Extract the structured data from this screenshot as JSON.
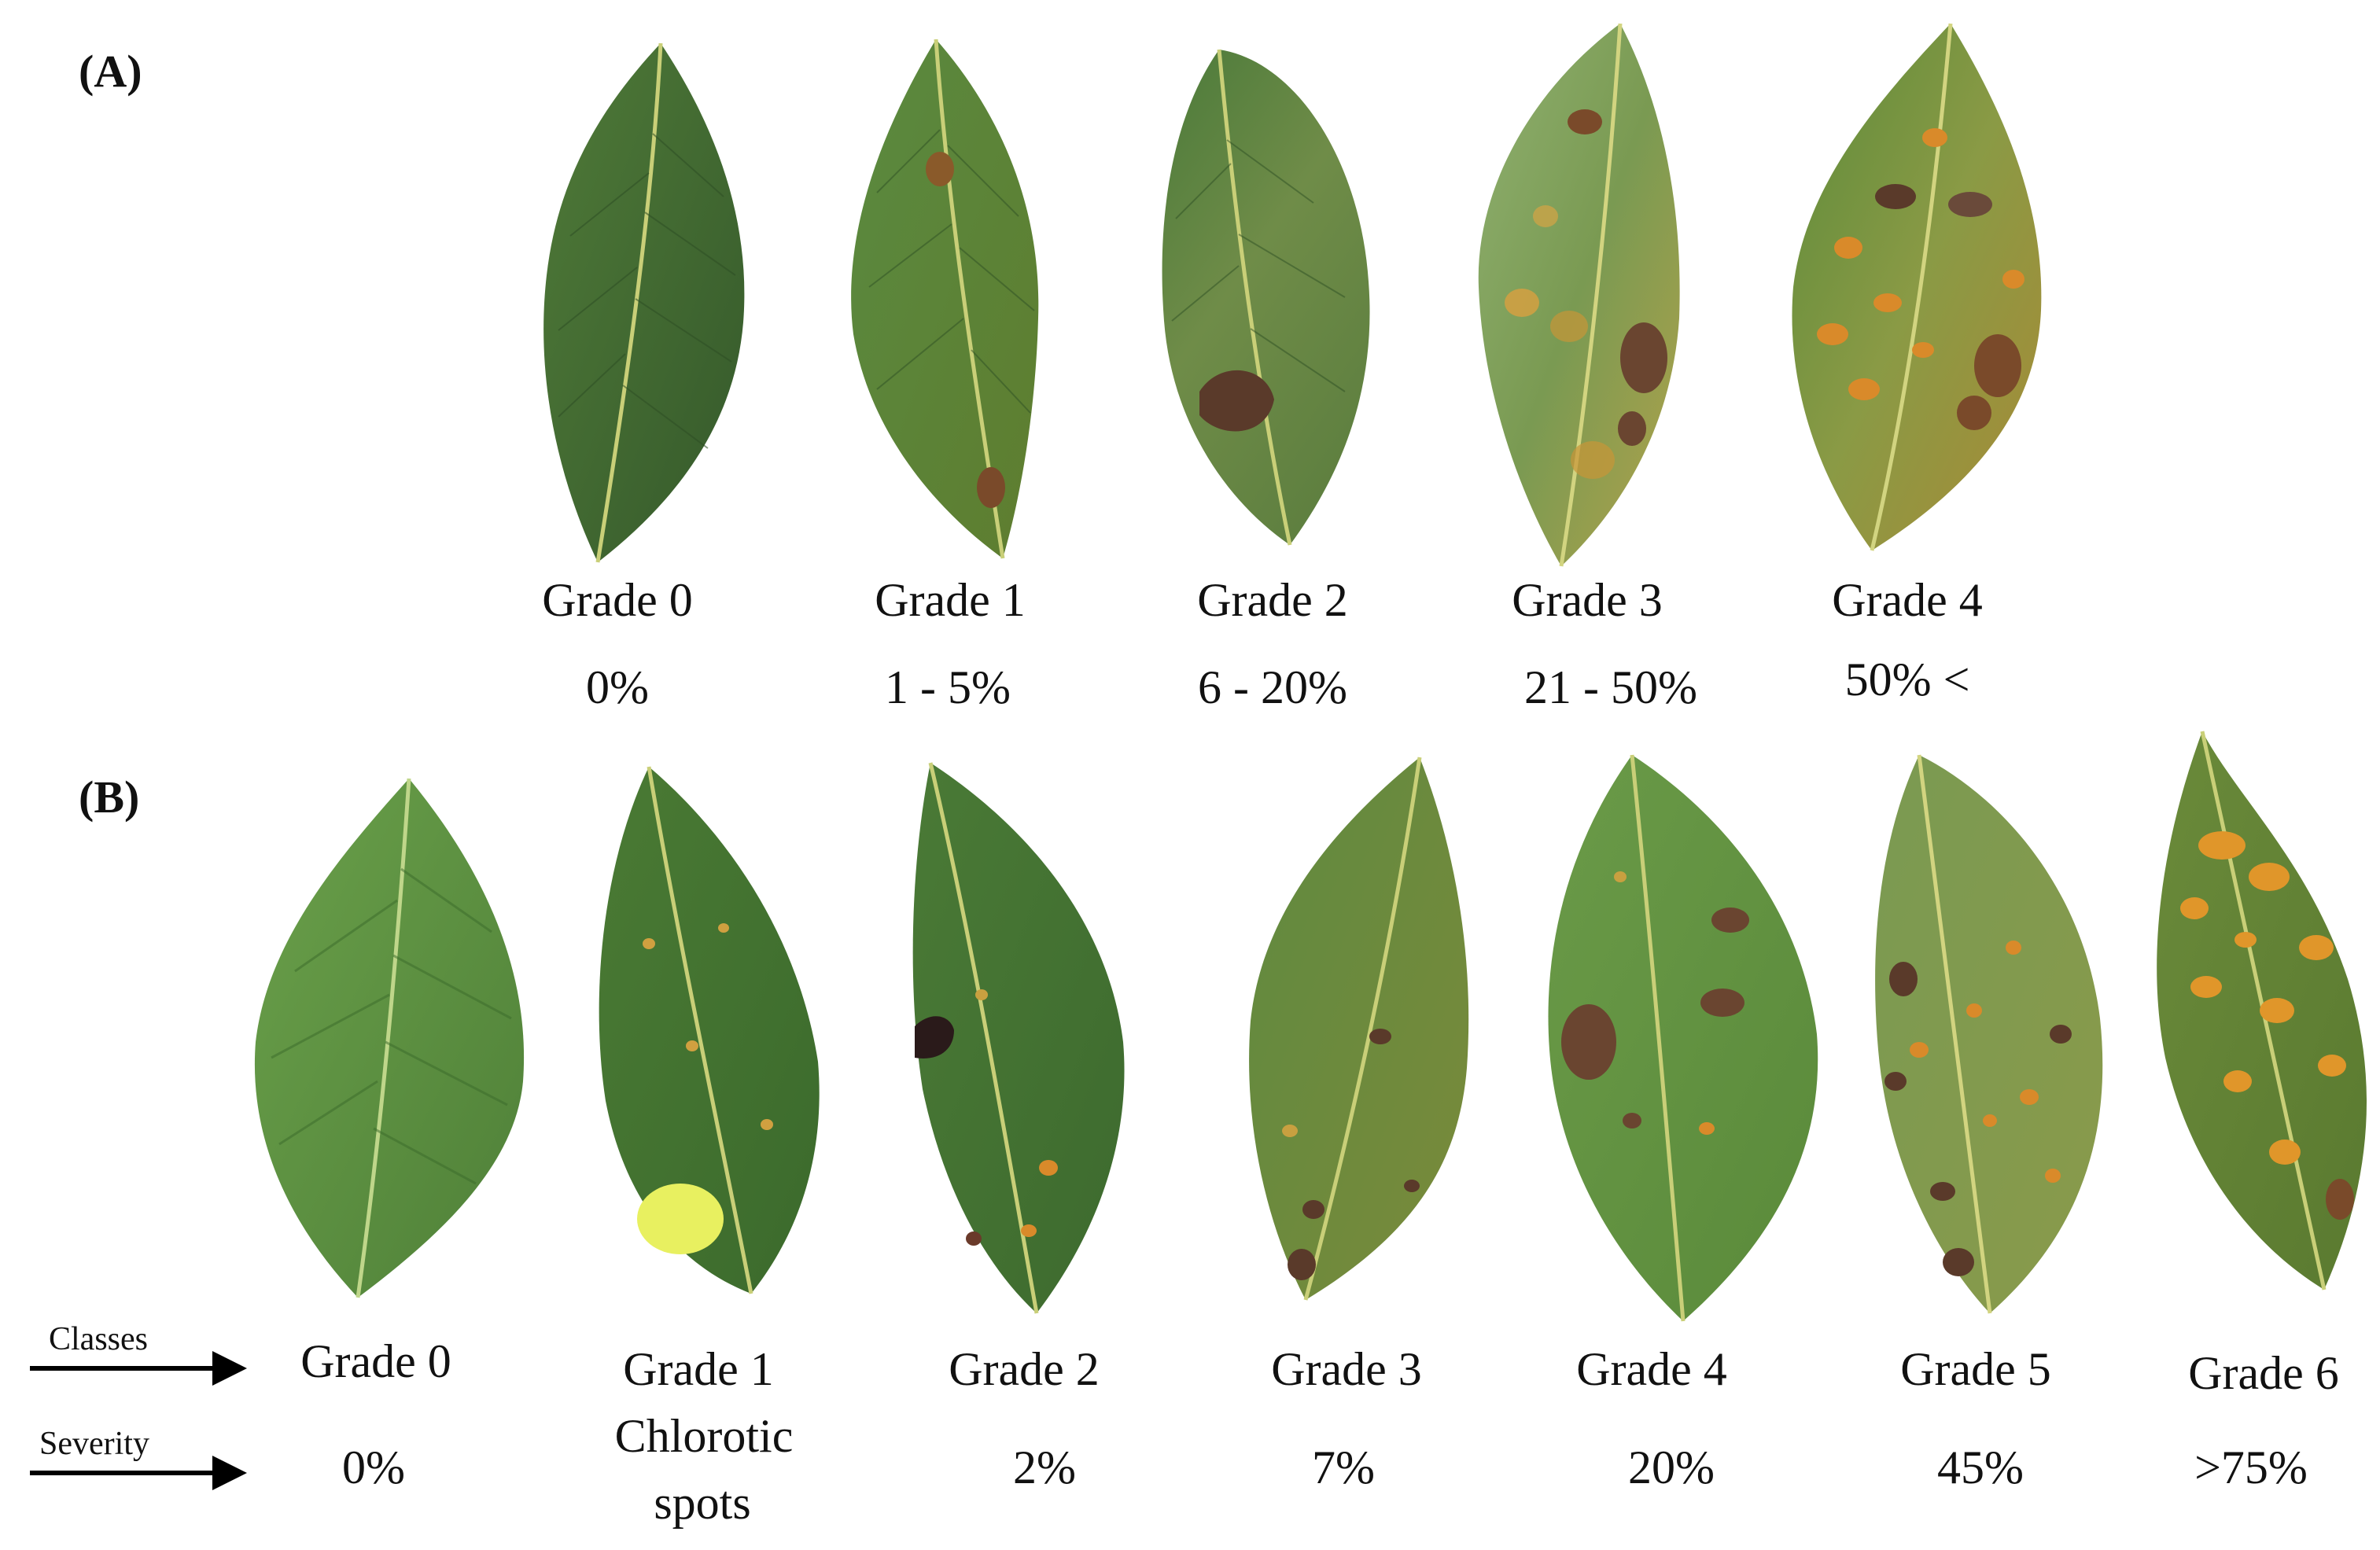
{
  "panels": {
    "a": {
      "label": "(A)",
      "grades": [
        {
          "grade": "Grade 0",
          "severity": "0%"
        },
        {
          "grade": "Grade 1",
          "severity": "1 - 5%"
        },
        {
          "grade": "Grade 2",
          "severity": "6 - 20%"
        },
        {
          "grade": "Grade 3",
          "severity": "21 - 50%"
        },
        {
          "grade": "Grade 4",
          "severity": "50% <"
        }
      ]
    },
    "b": {
      "label": "(B)",
      "classes_label": "Classes",
      "severity_label": "Severity",
      "grades": [
        {
          "grade": "Grade 0",
          "severity": "0%"
        },
        {
          "grade": "Grade 1",
          "note": "Chlorotic",
          "severity": "spots"
        },
        {
          "grade": "Grade 2",
          "severity": "2%"
        },
        {
          "grade": "Grade 3",
          "severity": "7%"
        },
        {
          "grade": "Grade 4",
          "severity": "20%"
        },
        {
          "grade": "Grade 5",
          "severity": "45%"
        },
        {
          "grade": "Grade 6",
          "severity": ">75%"
        }
      ]
    }
  },
  "colors": {
    "leaf_dark": "#3f6a32",
    "leaf_mid": "#5a8240",
    "leaf_yellow": "#c8a040",
    "lesion_orange": "#d98a2a",
    "lesion_brown": "#5a3a2a",
    "midrib": "#c9cf78",
    "chlorotic_spot": "#e8f060"
  }
}
